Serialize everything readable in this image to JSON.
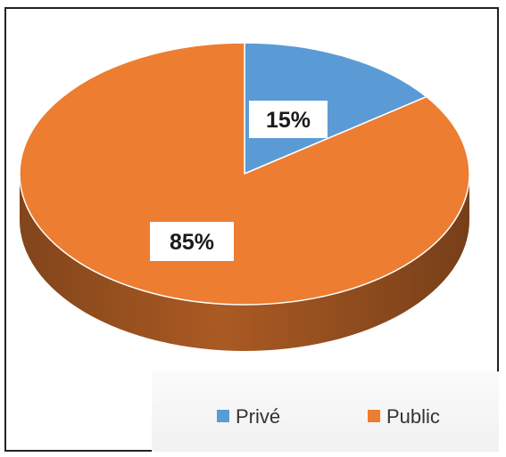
{
  "chart_data": {
    "type": "pie",
    "categories": [
      "Privé",
      "Public"
    ],
    "values": [
      15,
      85
    ],
    "data_labels": [
      "15%",
      "85%"
    ],
    "colors": [
      "#5b9bd5",
      "#ed7d31"
    ],
    "style": "3d",
    "legend": "bottom-right"
  }
}
